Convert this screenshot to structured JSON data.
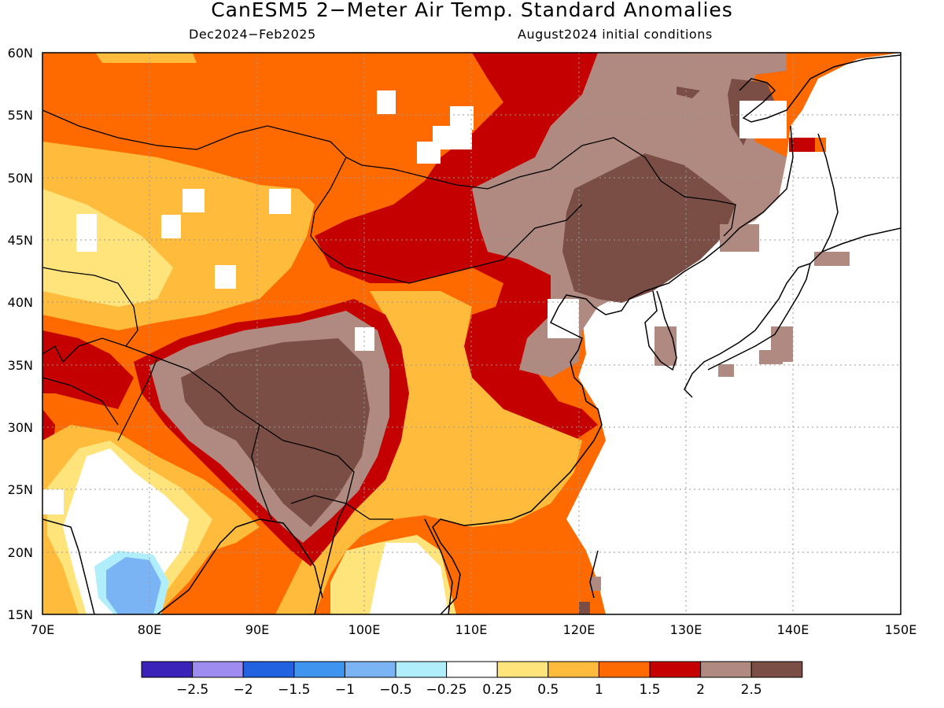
{
  "title": "CanESM5 2−Meter Air Temp. Standard Anomalies",
  "subtitle_left": "Dec2024−Feb2025",
  "subtitle_right": "August2024 initial conditions",
  "map": {
    "lon_range": [
      70,
      150
    ],
    "lat_range": [
      15,
      60
    ],
    "x_ticks": [
      "70E",
      "80E",
      "90E",
      "100E",
      "110E",
      "120E",
      "130E",
      "140E",
      "150E"
    ],
    "y_ticks": [
      "15N",
      "20N",
      "25N",
      "30N",
      "35N",
      "40N",
      "45N",
      "50N",
      "55N",
      "60N"
    ]
  },
  "colorbar": {
    "colors": [
      "#3b22b8",
      "#9f8cf0",
      "#2262e0",
      "#3f94f0",
      "#7ab4f4",
      "#b0eefc",
      "#ffffff",
      "#ffe47c",
      "#ffbc3c",
      "#ff6a00",
      "#c40000",
      "#b08a80",
      "#7a4e44"
    ],
    "labels": [
      "−2.5",
      "−2",
      "−1.5",
      "−1",
      "−0.5",
      "−0.25",
      "0.25",
      "0.5",
      "1",
      "1.5",
      "2",
      "2.5"
    ]
  }
}
